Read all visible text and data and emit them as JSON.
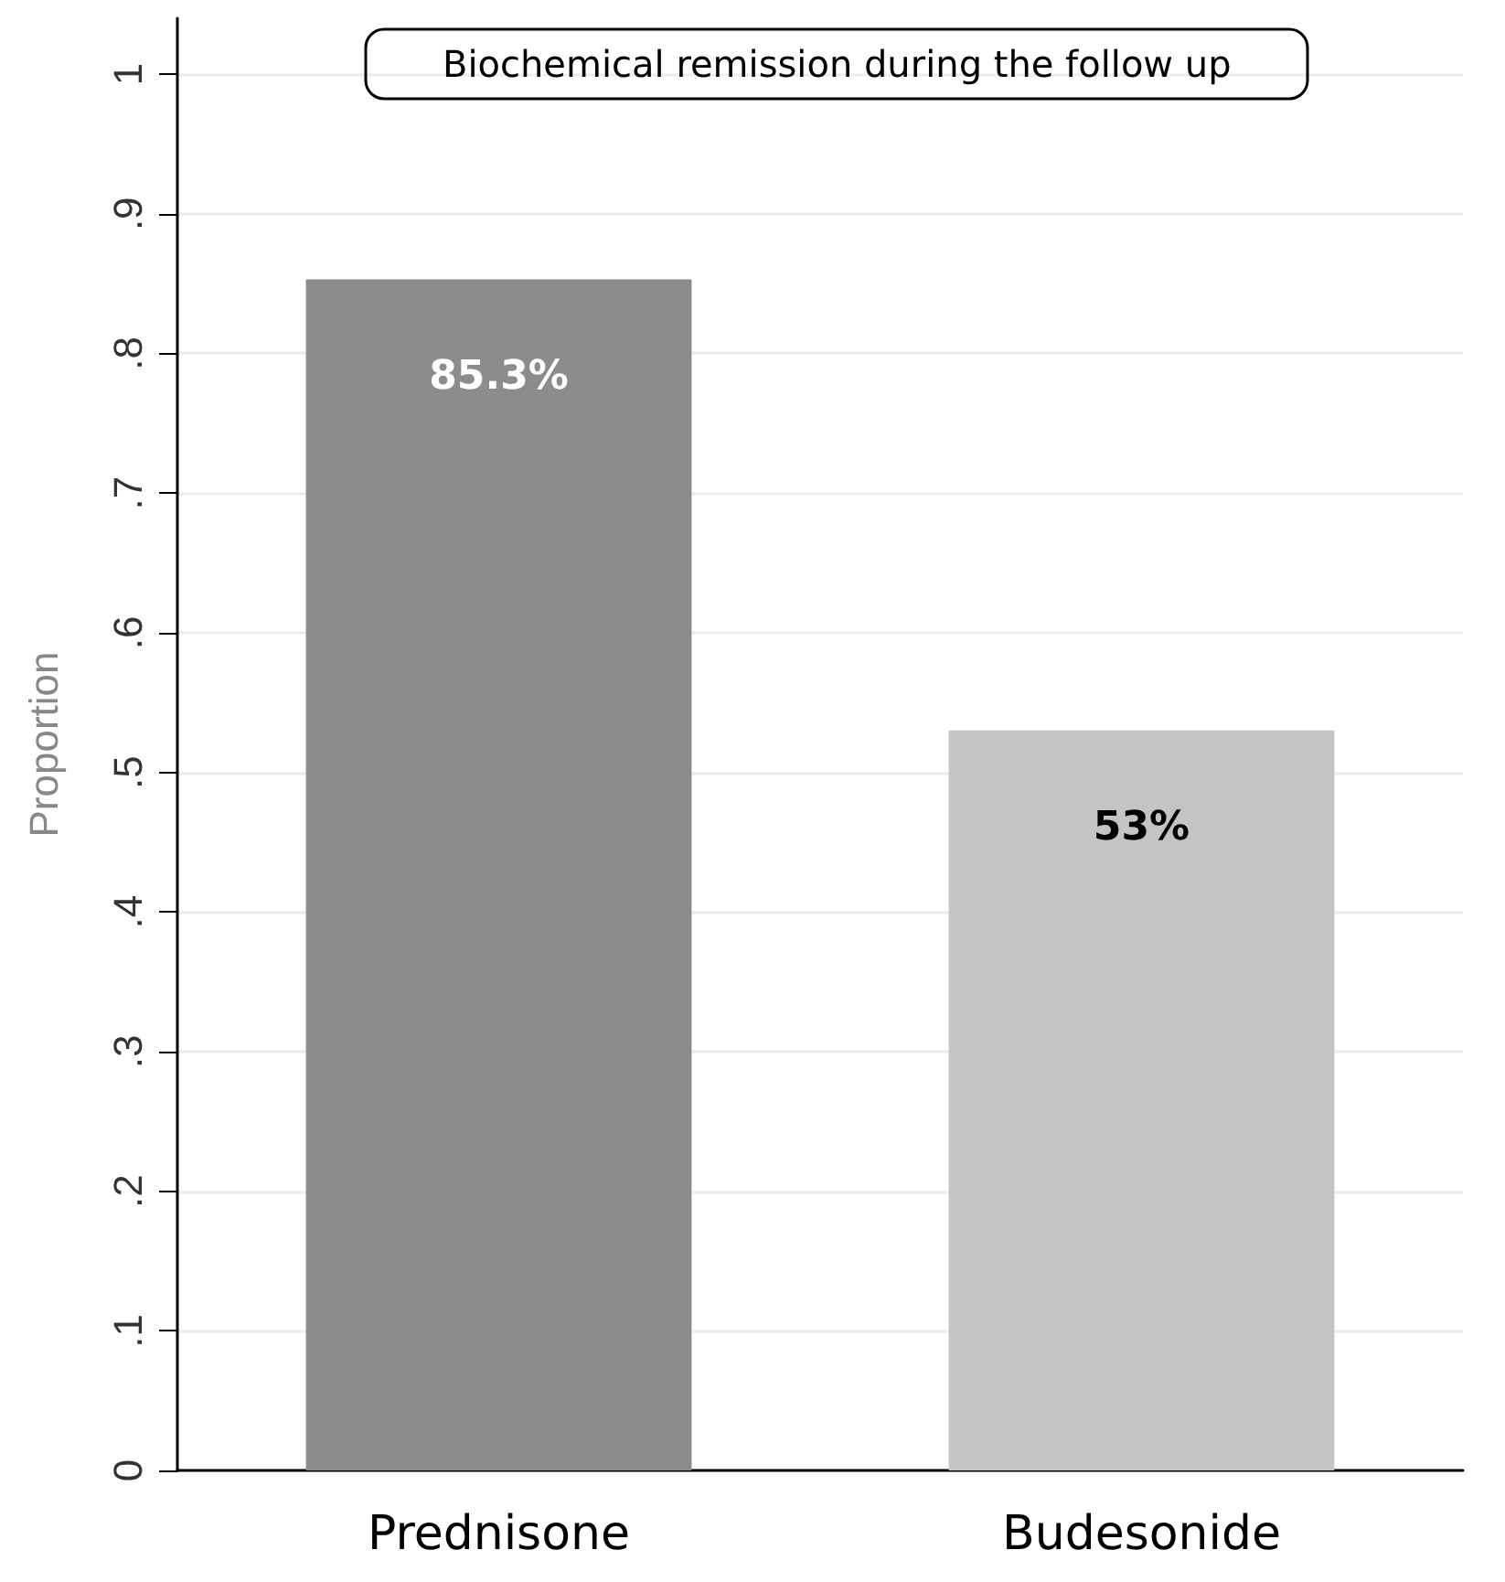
{
  "chart_data": {
    "type": "bar",
    "title": "Biochemical remission during the follow up",
    "ylabel": "Proportion",
    "categories": [
      "Prednisone",
      "Budesonide"
    ],
    "values": [
      0.853,
      0.53
    ],
    "colors": [
      "#8c8c8c",
      "#c4c4c4"
    ],
    "value_labels": [
      "85.3%",
      "53%"
    ],
    "ylim": [
      0,
      1.04
    ],
    "yticks": [
      0,
      {
        "value": 0.1,
        "label": ".1"
      },
      {
        "value": 0.2,
        "label": ".2"
      },
      {
        "value": 0.3,
        "label": ".3"
      },
      {
        "value": 0.4,
        "label": ".4"
      },
      {
        "value": 0.5,
        "label": ".5"
      },
      {
        "value": 0.6,
        "label": ".6"
      },
      {
        "value": 0.7,
        "label": ".7"
      },
      {
        "value": 0.8,
        "label": ".8"
      },
      {
        "value": 0.9,
        "label": ".9"
      },
      1
    ],
    "grid": "y"
  }
}
